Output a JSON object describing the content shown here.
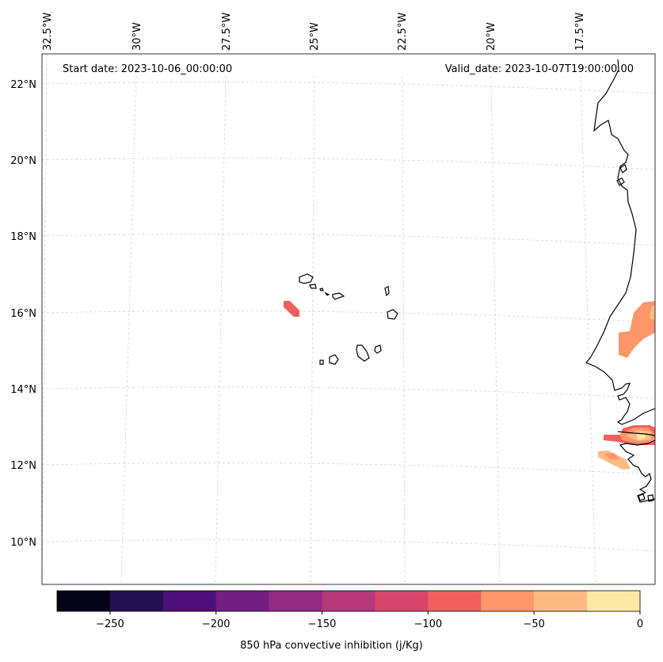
{
  "header": {
    "start_date": "Start date: 2023-10-06_00:00:00",
    "valid_date": "Valid_date: 2023-10-07T19:00:00.00"
  },
  "map": {
    "lon_labels": [
      "32.5°W",
      "30°W",
      "27.5°W",
      "25°W",
      "22.5°W",
      "20°W",
      "17.5°W"
    ],
    "lat_labels": [
      "22°N",
      "20°N",
      "18°N",
      "16°N",
      "14°N",
      "12°N",
      "10°N"
    ],
    "gridlines": true
  },
  "colorbar": {
    "label": "850 hPa convective inhibition (j/Kg)",
    "tick_labels": [
      "−250",
      "−200",
      "−150",
      "−100",
      "−50",
      "0"
    ],
    "range": [
      -275,
      0
    ],
    "colors": [
      "#050417",
      "#221150",
      "#4f0f7b",
      "#721f81",
      "#932b80",
      "#b6377a",
      "#d8456c",
      "#f1605d",
      "#fd9668",
      "#febb81",
      "#fde8a4"
    ]
  }
}
